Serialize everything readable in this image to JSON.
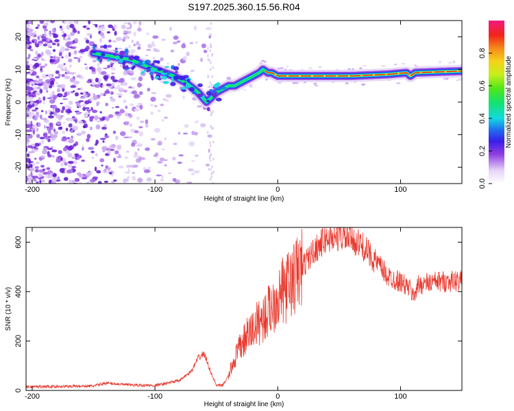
{
  "title": "S197.2025.360.15.56.R04",
  "colors": {
    "snr_line": "#e8392e",
    "frame": "#000000"
  },
  "chart_data": [
    {
      "type": "heatmap",
      "name": "spectrogram",
      "xlabel": "Height of straight line (km)",
      "ylabel": "Frequency (Hz)",
      "xlim": [
        -205,
        150
      ],
      "ylim": [
        -25,
        25
      ],
      "xticks": [
        -200,
        -100,
        0,
        100
      ],
      "yticks": [
        -20,
        -10,
        0,
        10,
        20
      ],
      "colorbar": {
        "label": "Normalized spectral amplitude",
        "range": [
          0,
          1
        ],
        "ticks": [
          0.0,
          0.2,
          0.4,
          0.6,
          0.8
        ],
        "tick_labels": [
          "0.0",
          "0.2",
          "0.4",
          "0.6",
          "0.8"
        ]
      },
      "ridge": {
        "x": [
          -150,
          -120,
          -100,
          -85,
          -75,
          -65,
          -58,
          -55,
          -50,
          -45,
          -40,
          -35,
          -30,
          -25,
          -20,
          -15,
          -12,
          -8,
          -5,
          0,
          20,
          60,
          90,
          105,
          108,
          112,
          150
        ],
        "y": [
          15,
          13,
          10,
          8,
          6,
          3,
          0,
          1,
          3,
          4,
          5,
          5,
          6,
          7,
          8,
          9,
          10,
          9,
          9,
          8,
          8,
          8,
          8.5,
          9,
          8,
          9,
          9.5
        ]
      }
    },
    {
      "type": "line",
      "name": "snr",
      "xlabel": "Height of straight line (km)",
      "ylabel": "SNR (10 * v/v)",
      "xlim": [
        -205,
        150
      ],
      "ylim": [
        0,
        660
      ],
      "xticks": [
        -200,
        -100,
        0,
        100
      ],
      "yticks": [
        0,
        200,
        400,
        600
      ],
      "envelope": {
        "x": [
          -205,
          -150,
          -140,
          -120,
          -100,
          -80,
          -70,
          -65,
          -60,
          -55,
          -50,
          -45,
          -40,
          -35,
          -30,
          -25,
          -20,
          -15,
          -10,
          -5,
          0,
          10,
          20,
          30,
          40,
          50,
          60,
          70,
          80,
          90,
          100,
          108,
          110,
          115,
          130,
          150
        ],
        "y": [
          15,
          18,
          30,
          22,
          20,
          40,
          80,
          130,
          150,
          80,
          20,
          20,
          60,
          130,
          180,
          220,
          250,
          280,
          300,
          340,
          380,
          430,
          500,
          570,
          615,
          625,
          615,
          580,
          520,
          460,
          440,
          410,
          380,
          430,
          440,
          445
        ]
      }
    }
  ]
}
